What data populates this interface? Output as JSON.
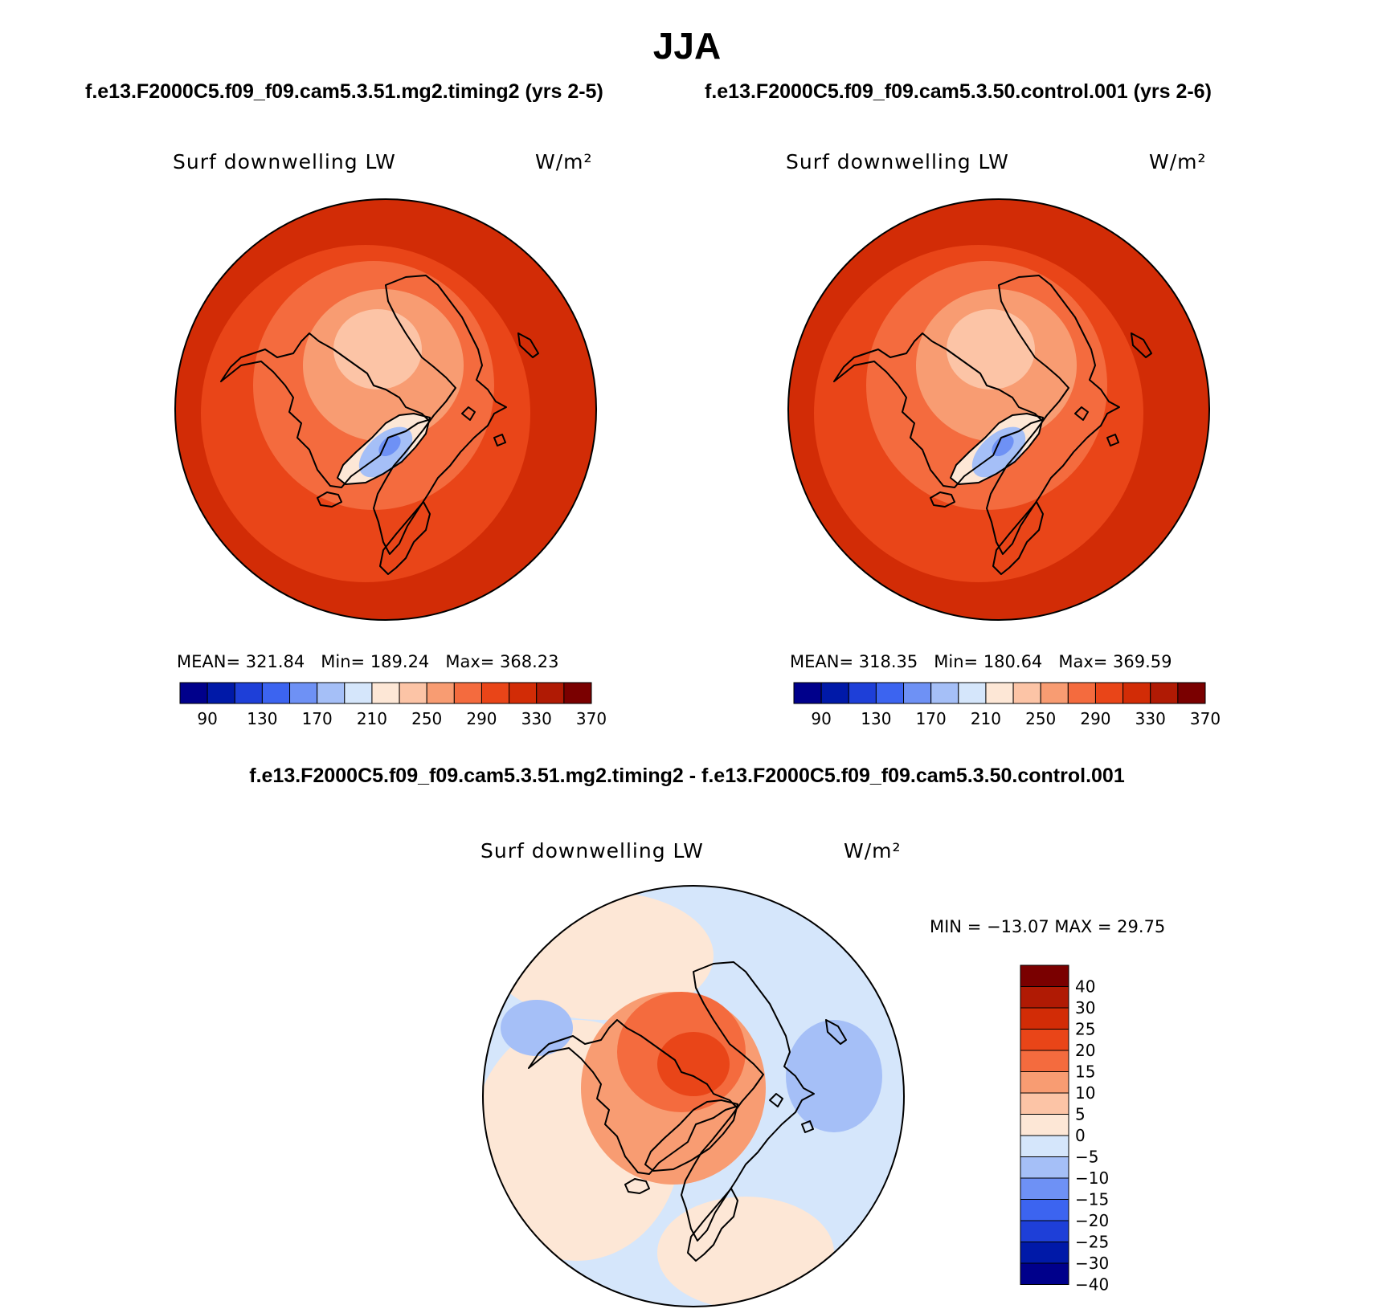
{
  "page": {
    "title": "JJA",
    "case_subtitle_left": "f.e13.F2000C5.f09_f09.cam5.3.51.mg2.timing2 (yrs 2-5)",
    "case_subtitle_right": "f.e13.F2000C5.f09_f09.cam5.3.50.control.001 (yrs 2-6)",
    "diff_title": "f.e13.F2000C5.f09_f09.cam5.3.51.mg2.timing2 - f.e13.F2000C5.f09_f09.cam5.3.50.control.001"
  },
  "panels": [
    {
      "variable": "Surf downwelling LW",
      "units": "W/m²",
      "stats": {
        "mean_label": "MEAN=",
        "mean": "321.84",
        "min_label": "Min=",
        "min": "189.24",
        "max_label": "Max=",
        "max": "368.23"
      }
    },
    {
      "variable": "Surf downwelling LW",
      "units": "W/m²",
      "stats": {
        "mean_label": "MEAN=",
        "mean": "318.35",
        "min_label": "Min=",
        "min": "180.64",
        "max_label": "Max=",
        "max": "369.59"
      }
    }
  ],
  "abs_colorbar": {
    "colors": [
      "#00008b",
      "#0019a8",
      "#1e3fd8",
      "#3c64f0",
      "#6e91f5",
      "#a5bff7",
      "#d5e6fb",
      "#fde7d6",
      "#fcc4a6",
      "#f89c72",
      "#f46b3e",
      "#e94518",
      "#d22c06",
      "#b01a04",
      "#7a0000"
    ],
    "labels": [
      "90",
      "130",
      "170",
      "210",
      "250",
      "290",
      "330",
      "370"
    ]
  },
  "diff_panel": {
    "variable": "Surf downwelling LW",
    "units": "W/m²",
    "minmax_text": "MIN = −13.07 MAX =  29.75",
    "colorbar": {
      "colors": [
        "#00008b",
        "#0019a8",
        "#1e3fd8",
        "#3c64f0",
        "#6e91f5",
        "#a5bff7",
        "#d5e6fb",
        "#fde7d6",
        "#fcc4a6",
        "#f89c72",
        "#f46b3e",
        "#e94518",
        "#d22c06",
        "#b01a04",
        "#7a0000"
      ],
      "labels": [
        "40",
        "30",
        "25",
        "20",
        "15",
        "10",
        "5",
        "0",
        "−5",
        "−10",
        "−15",
        "−20",
        "−25",
        "−30",
        "−40"
      ]
    }
  },
  "map_colors": {
    "outer": "#d22c06",
    "mid": "#e94518",
    "inner": "#f46b3e",
    "pole": "#f89c72",
    "pole_core": "#fcc4a6",
    "greenland_edge": "#fde7d6",
    "greenland": "#a5bff7",
    "greenland_core": "#6e91f5",
    "diff_bg": "#d5e6fb",
    "diff_warm": "#fde7d6",
    "diff_orange": "#f89c72",
    "diff_hot": "#f46b3e",
    "diff_core": "#e94518",
    "diff_blue": "#a5bff7"
  }
}
